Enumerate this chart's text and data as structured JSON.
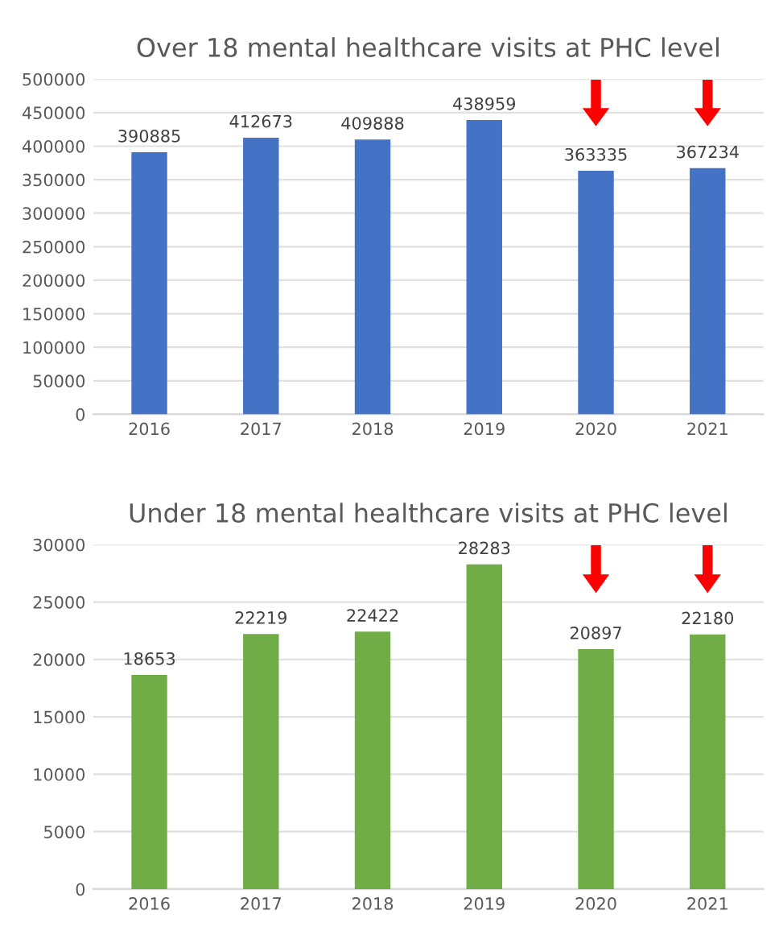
{
  "chart_data": [
    {
      "type": "bar",
      "title": "Over 18 mental healthcare visits at PHC level",
      "categories": [
        "2016",
        "2017",
        "2018",
        "2019",
        "2020",
        "2021"
      ],
      "values": [
        390885,
        412673,
        409888,
        438959,
        363335,
        367234
      ],
      "color": "#4472c4",
      "ylim": [
        0,
        500000
      ],
      "yticks": [
        0,
        50000,
        100000,
        150000,
        200000,
        250000,
        300000,
        350000,
        400000,
        450000,
        500000
      ],
      "grid": "y",
      "data_labels": true
    },
    {
      "type": "bar",
      "title": "Under 18 mental healthcare visits at PHC level",
      "categories": [
        "2016",
        "2017",
        "2018",
        "2019",
        "2020",
        "2021"
      ],
      "values": [
        18653,
        22219,
        22422,
        28283,
        20897,
        22180
      ],
      "color": "#70ad47",
      "ylim": [
        0,
        30000
      ],
      "yticks": [
        0,
        5000,
        10000,
        15000,
        20000,
        25000,
        30000
      ],
      "grid": "y",
      "data_labels": true
    }
  ]
}
